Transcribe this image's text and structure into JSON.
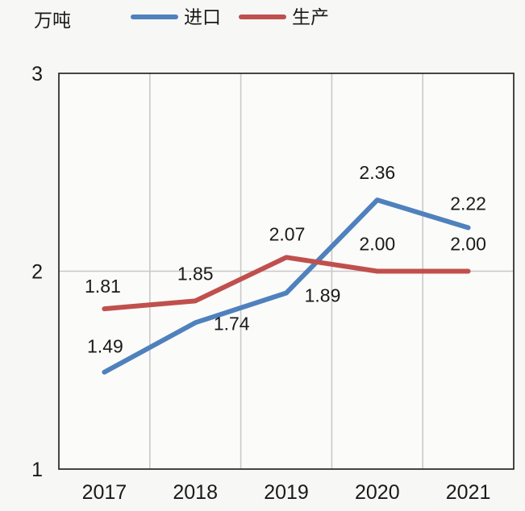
{
  "style": {
    "page_bg": "#f7f7f6",
    "plot_bg": "#fbfbfa",
    "border_color": "#262626",
    "grid_color": "#c9c9c9",
    "text_color": "#1a1a1a",
    "accent_blue": "#4f81bd",
    "accent_red": "#c0504d"
  },
  "chart_data": {
    "type": "line",
    "title": "",
    "unit": "万吨",
    "xlabel": "",
    "ylabel": "万吨",
    "categories": [
      "2017",
      "2018",
      "2019",
      "2020",
      "2021"
    ],
    "series": [
      {
        "name": "进口",
        "color": "#4f81bd",
        "values": [
          1.49,
          1.74,
          1.89,
          2.36,
          2.22
        ],
        "labels": [
          "1.49",
          "1.74",
          "1.89",
          "2.36",
          "2.22"
        ],
        "label_offsets": [
          [
            1,
            -24
          ],
          [
            45,
            9
          ],
          [
            45,
            11
          ],
          [
            0,
            -26
          ],
          [
            0,
            -22
          ]
        ]
      },
      {
        "name": "生产",
        "color": "#c0504d",
        "values": [
          1.81,
          1.85,
          2.07,
          2.0,
          2.0
        ],
        "labels": [
          "1.81",
          "1.85",
          "2.07",
          "2.00",
          "2.00"
        ],
        "label_offsets": [
          [
            -2,
            -20
          ],
          [
            0,
            -26
          ],
          [
            1,
            -21
          ],
          [
            0,
            -26
          ],
          [
            0,
            -26
          ]
        ]
      }
    ],
    "ylim": [
      1,
      3
    ],
    "yticks": [
      "1",
      "2",
      "3"
    ],
    "grid": {
      "horizontal": true,
      "vertical": true
    },
    "legend_position": "top",
    "line_width": 6
  }
}
